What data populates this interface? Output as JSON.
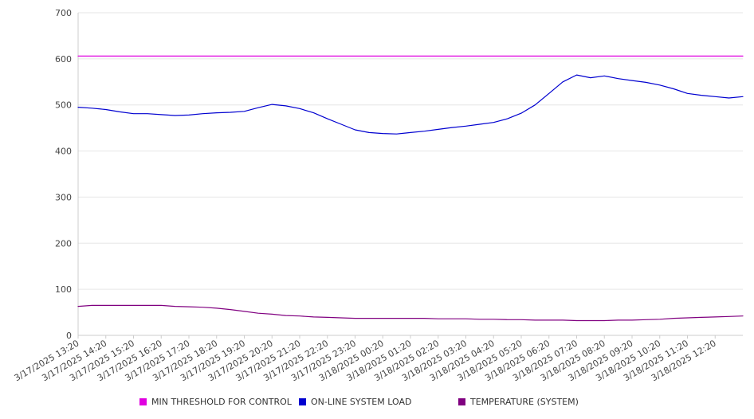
{
  "chart_data": {
    "type": "line",
    "title": "",
    "xlabel": "",
    "ylabel": "",
    "ylim": [
      0,
      700
    ],
    "y_ticks": [
      0,
      100,
      200,
      300,
      400,
      500,
      600,
      700
    ],
    "grid": true,
    "legend_placement": "bottom",
    "x_tick_labels": [
      "3/17/2025 13:20",
      "3/17/2025 14:20",
      "3/17/2025 15:20",
      "3/17/2025 16:20",
      "3/17/2025 17:20",
      "3/17/2025 18:20",
      "3/17/2025 19:20",
      "3/17/2025 20:20",
      "3/17/2025 21:20",
      "3/17/2025 22:20",
      "3/17/2025 23:20",
      "3/18/2025 00:20",
      "3/18/2025 01:20",
      "3/18/2025 02:20",
      "3/18/2025 03:20",
      "3/18/2025 04:20",
      "3/18/2025 05:20",
      "3/18/2025 06:20",
      "3/18/2025 07:20",
      "3/18/2025 08:20",
      "3/18/2025 09:20",
      "3/18/2025 10:20",
      "3/18/2025 11:20",
      "3/18/2025 12:20"
    ],
    "x": [
      "3/17/2025 13:20",
      "3/17/2025 13:50",
      "3/17/2025 14:20",
      "3/17/2025 14:50",
      "3/17/2025 15:20",
      "3/17/2025 15:50",
      "3/17/2025 16:20",
      "3/17/2025 16:50",
      "3/17/2025 17:20",
      "3/17/2025 17:50",
      "3/17/2025 18:20",
      "3/17/2025 18:50",
      "3/17/2025 19:20",
      "3/17/2025 19:50",
      "3/17/2025 20:20",
      "3/17/2025 20:50",
      "3/17/2025 21:20",
      "3/17/2025 21:50",
      "3/17/2025 22:20",
      "3/17/2025 22:50",
      "3/17/2025 23:20",
      "3/17/2025 23:50",
      "3/18/2025 00:20",
      "3/18/2025 00:50",
      "3/18/2025 01:20",
      "3/18/2025 01:50",
      "3/18/2025 02:20",
      "3/18/2025 02:50",
      "3/18/2025 03:20",
      "3/18/2025 03:50",
      "3/18/2025 04:20",
      "3/18/2025 04:50",
      "3/18/2025 05:20",
      "3/18/2025 05:50",
      "3/18/2025 06:20",
      "3/18/2025 06:50",
      "3/18/2025 07:20",
      "3/18/2025 07:50",
      "3/18/2025 08:20",
      "3/18/2025 08:50",
      "3/18/2025 09:20",
      "3/18/2025 09:50",
      "3/18/2025 10:20",
      "3/18/2025 10:50",
      "3/18/2025 11:20",
      "3/18/2025 11:50",
      "3/18/2025 12:20",
      "3/18/2025 12:50",
      "3/18/2025 13:20"
    ],
    "series": [
      {
        "name": "MIN THRESHOLD FOR CONTROL",
        "color": "#e000e0",
        "values": [
          606,
          606,
          606,
          606,
          606,
          606,
          606,
          606,
          606,
          606,
          606,
          606,
          606,
          606,
          606,
          606,
          606,
          606,
          606,
          606,
          606,
          606,
          606,
          606,
          606,
          606,
          606,
          606,
          606,
          606,
          606,
          606,
          606,
          606,
          606,
          606,
          606,
          606,
          606,
          606,
          606,
          606,
          606,
          606,
          606,
          606,
          606,
          606,
          606
        ]
      },
      {
        "name": "ON-LINE SYSTEM LOAD",
        "color": "#0000d0",
        "values": [
          495,
          493,
          490,
          485,
          481,
          481,
          479,
          477,
          478,
          481,
          483,
          484,
          486,
          494,
          501,
          498,
          492,
          483,
          470,
          458,
          446,
          440,
          438,
          437,
          440,
          443,
          447,
          451,
          454,
          458,
          462,
          470,
          482,
          500,
          525,
          550,
          565,
          559,
          563,
          557,
          553,
          549,
          543,
          535,
          525,
          521,
          518,
          515,
          518
        ]
      },
      {
        "name": "TEMPERATURE (SYSTEM)",
        "color": "#800080",
        "values": [
          63,
          65,
          65,
          65,
          65,
          65,
          65,
          63,
          62,
          61,
          59,
          56,
          52,
          48,
          46,
          43,
          42,
          40,
          39,
          38,
          37,
          37,
          37,
          37,
          37,
          37,
          36,
          36,
          36,
          35,
          35,
          34,
          34,
          33,
          33,
          33,
          32,
          32,
          32,
          33,
          33,
          34,
          35,
          37,
          38,
          39,
          40,
          41,
          42
        ]
      }
    ]
  }
}
